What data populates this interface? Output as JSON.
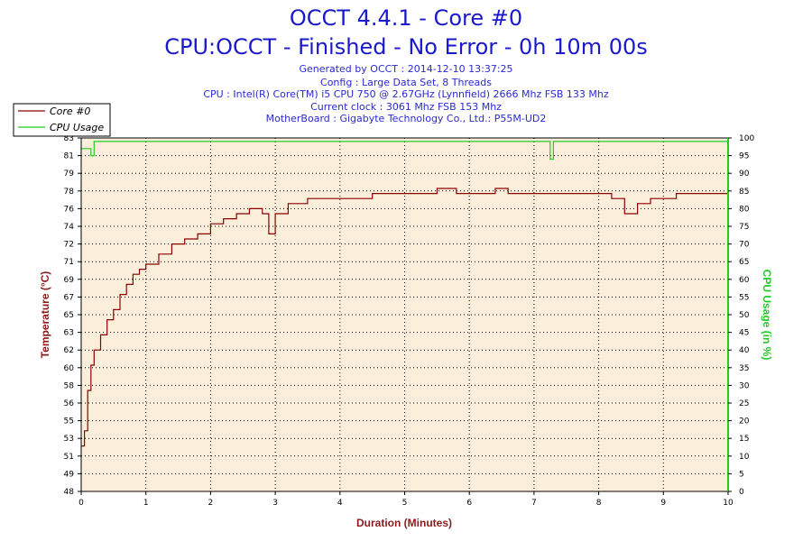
{
  "header": {
    "title": "OCCT 4.4.1 - Core #0",
    "subtitle": "CPU:OCCT - Finished - No Error - 0h 10m 00s",
    "info": [
      "Generated by OCCT : 2014-12-10 13:37:25",
      "Config : Large Data Set, 8 Threads",
      "CPU : Intel(R) Core(TM) i5 CPU 750 @ 2.67GHz (Lynnfield) 2666 Mhz FSB 133 Mhz",
      "Current clock : 3061 Mhz FSB 153 Mhz",
      "MotherBoard : Gigabyte Technology Co., Ltd.: P55M-UD2"
    ]
  },
  "colors": {
    "temp": "#8b0000",
    "usage": "#22cc22",
    "plot_bg": "#fbefdc",
    "title": "#1a1acc",
    "xlabel": "#8b1a1a"
  },
  "chart_data": {
    "type": "line",
    "xlabel": "Duration (Minutes)",
    "ylabel_left": "Temperature (°C)",
    "ylabel_right": "CPU Usage (in %)",
    "xlim": [
      0,
      10
    ],
    "ylim_left": [
      48,
      83
    ],
    "ylim_right": [
      0,
      100
    ],
    "x_ticks": [
      "0",
      "1",
      "2",
      "3",
      "4",
      "5",
      "6",
      "7",
      "8",
      "9",
      "10"
    ],
    "y_left_ticks": [
      "48",
      "49",
      "51",
      "53",
      "55",
      "56",
      "58",
      "60",
      "62",
      "63",
      "65",
      "67",
      "69",
      "71",
      "72",
      "74",
      "76",
      "78",
      "79",
      "81",
      "83"
    ],
    "y_right_ticks": [
      "0",
      "5",
      "10",
      "15",
      "20",
      "25",
      "30",
      "35",
      "40",
      "45",
      "50",
      "55",
      "60",
      "65",
      "70",
      "75",
      "80",
      "85",
      "90",
      "95",
      "100"
    ],
    "grid": true,
    "legend_position": "top-left",
    "series": [
      {
        "name": "Core #0",
        "axis": "left",
        "x": [
          0,
          0.05,
          0.1,
          0.15,
          0.2,
          0.3,
          0.4,
          0.5,
          0.6,
          0.7,
          0.8,
          0.9,
          1.0,
          1.2,
          1.4,
          1.6,
          1.8,
          2.0,
          2.2,
          2.4,
          2.6,
          2.8,
          2.9,
          3.0,
          3.2,
          3.5,
          4.0,
          4.5,
          5.0,
          5.2,
          5.5,
          5.8,
          6.0,
          6.4,
          6.6,
          7.0,
          7.5,
          8.0,
          8.2,
          8.4,
          8.6,
          8.8,
          9.0,
          9.2,
          9.5,
          9.8,
          10.0
        ],
        "values": [
          52.5,
          54,
          58,
          60.5,
          62,
          63.5,
          65,
          66,
          67.5,
          68.5,
          69.5,
          70,
          70.5,
          71.5,
          72.5,
          73,
          73.5,
          74.5,
          75,
          75.5,
          76,
          75.5,
          73.5,
          75.5,
          76.5,
          77,
          77,
          77.5,
          77.5,
          77.5,
          78,
          77.5,
          77.5,
          78,
          77.5,
          77.5,
          77.5,
          77.5,
          77,
          75.5,
          76.5,
          77,
          77,
          77.5,
          77.5,
          77.5,
          77.5
        ]
      },
      {
        "name": "CPU Usage",
        "axis": "right",
        "x": [
          0,
          0.1,
          0.15,
          0.2,
          0.3,
          0.5,
          1.0,
          2.0,
          3.0,
          4.0,
          5.0,
          6.0,
          7.0,
          7.2,
          7.25,
          7.3,
          8.0,
          9.0,
          10.0
        ],
        "values": [
          97,
          97,
          95,
          99,
          99,
          99,
          99,
          99,
          99,
          99,
          99,
          99,
          99,
          99,
          94,
          99,
          99,
          99,
          99
        ]
      }
    ]
  }
}
